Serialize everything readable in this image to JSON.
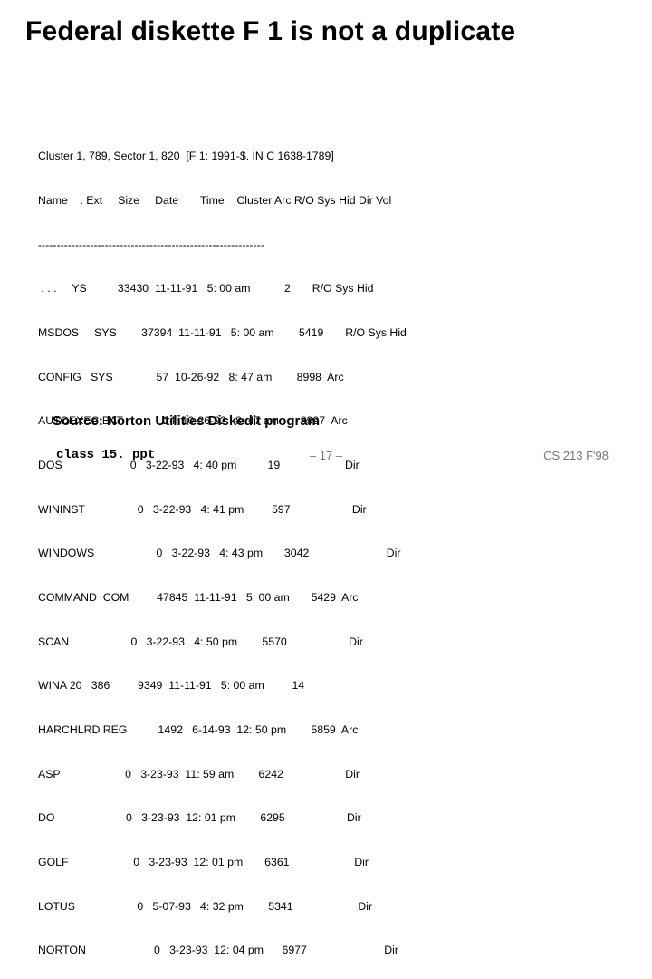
{
  "title": "Federal diskette F 1 is not a duplicate",
  "listing": {
    "header1": "Cluster 1, 789, Sector 1, 820  [F 1: 1991-$. IN C 1638-1789]",
    "header2": "Name    . Ext     Size     Date       Time    Cluster Arc R/O Sys Hid Dir Vol",
    "divider": "-------------------------------------------------------------",
    "rows": [
      " . . .     YS          33430  11-11-91   5: 00 am           2       R/O Sys Hid",
      "MSDOS     SYS        37394  11-11-91   5: 00 am        5419       R/O Sys Hid",
      "CONFIG   SYS              57  10-26-92   8: 47 am        8998  Arc",
      "AUTOEXEC BAT             24  10-26-92   8: 47 am       8997  Arc",
      "DOS                      0   3-22-93   4: 40 pm          19                     Dir",
      "WININST                 0   3-22-93   4: 41 pm         597                    Dir",
      "WINDOWS                    0   3-22-93   4: 43 pm       3042                         Dir",
      "COMMAND  COM         47845  11-11-91   5: 00 am       5429  Arc",
      "SCAN                    0   3-22-93   4: 50 pm        5570                    Dir",
      "WINA 20   386         9349  11-11-91   5: 00 am         14",
      "HARCHLRD REG          1492   6-14-93  12: 50 pm        5859  Arc",
      "ASP                     0   3-23-93  11: 59 am        6242                    Dir",
      "DO                       0   3-23-93  12: 01 pm        6295                    Dir",
      "GOLF                     0   3-23-93  12: 01 pm       6361                     Dir",
      "LOTUS                    0   5-07-93   4: 32 pm        5341                     Dir",
      "NORTON                      0   3-23-93  12: 04 pm      6977                         Dir"
    ]
  },
  "source": "Source: Norton Utilities Diskedit program",
  "footer": {
    "left": "class 15. ppt",
    "center": "– 17 –",
    "right": "CS 213 F'98"
  },
  "colors": {
    "text": "#000000",
    "muted": "#777777",
    "background": "#ffffff"
  }
}
